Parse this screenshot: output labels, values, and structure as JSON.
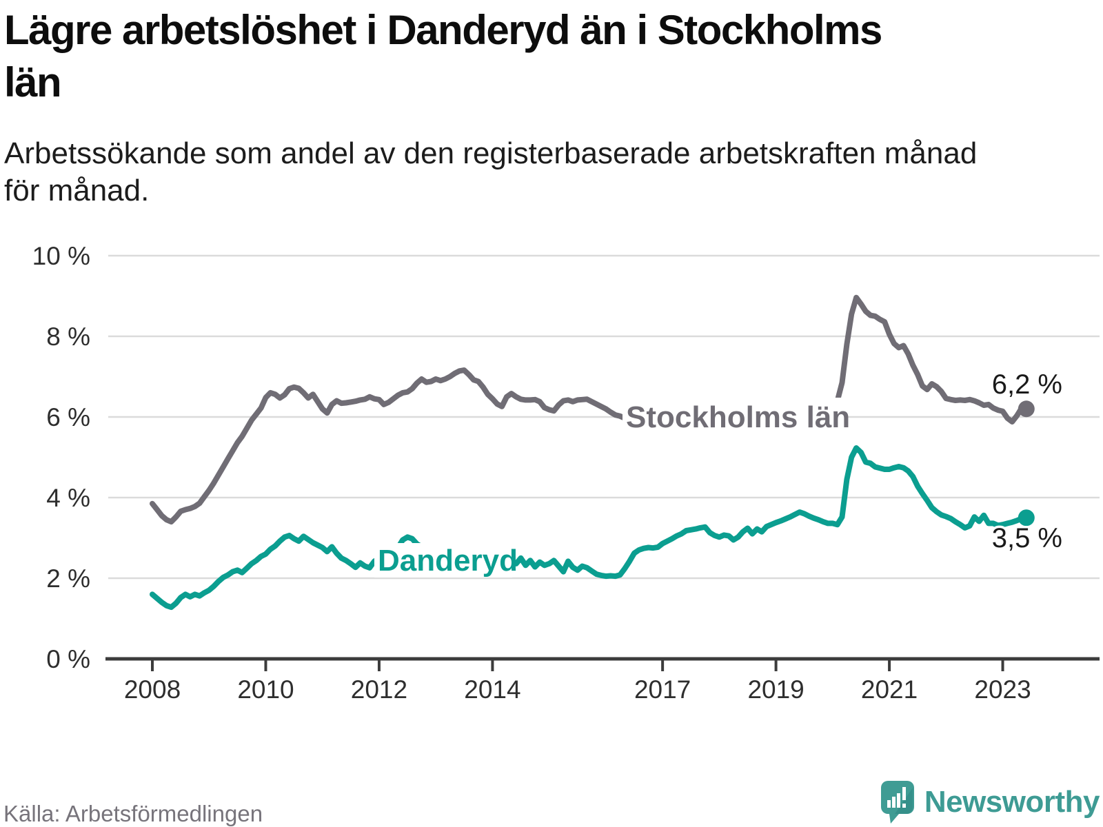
{
  "title": "Lägre arbetslöshet i Danderyd än i Stockholms län",
  "title_lines": [
    "Lägre arbetslöshet i Danderyd än i Stockholms",
    "län"
  ],
  "subtitle": "Arbetssökande som andel av den registerbaserade arbetskraften månad för månad.",
  "subtitle_lines": [
    "Arbetssökande som andel av den registerbaserade arbetskraften månad",
    "för månad."
  ],
  "source": "Källa: Arbetsförmedlingen",
  "brand": {
    "name": "Newsworthy",
    "color": "#3e9b94",
    "icon": "newsworthy-speech-bubble-chart-icon"
  },
  "colors": {
    "stockholm_line": "#706d75",
    "danderyd_line": "#0b9e90",
    "gridline": "#dbdbdb",
    "axis": "#3c3c3c",
    "tick_text": "#2e2e2e",
    "end_label_text": "#1a1a1a"
  },
  "chart_data": {
    "type": "line",
    "title": "Lägre arbetslöshet i Danderyd än i Stockholms län",
    "subtitle": "Arbetssökande som andel av den registerbaserade arbetskraften månad för månad.",
    "x_unit": "month",
    "x_start": "2008-01",
    "x_end": "2023-06",
    "ylim": [
      0,
      10
    ],
    "grid": "horizontal",
    "legend_position": "inline-labels",
    "y_ticks": [
      0,
      2,
      4,
      6,
      8,
      10
    ],
    "y_tick_labels": [
      "0 %",
      "2 %",
      "4 %",
      "6 %",
      "8 %",
      "10 %"
    ],
    "x_tick_years": [
      2008,
      2010,
      2012,
      2014,
      2017,
      2019,
      2021,
      2023
    ],
    "x_tick_labels": [
      "2008",
      "2010",
      "2012",
      "2014",
      "2017",
      "2019",
      "2021",
      "2023"
    ],
    "series": [
      {
        "name": "Stockholms län",
        "color": "#706d75",
        "end_value": 6.2,
        "end_label": "6,2 %",
        "values": [
          3.85,
          3.7,
          3.55,
          3.45,
          3.4,
          3.52,
          3.66,
          3.7,
          3.73,
          3.78,
          3.86,
          4.02,
          4.18,
          4.36,
          4.56,
          4.76,
          4.96,
          5.16,
          5.36,
          5.52,
          5.72,
          5.92,
          6.07,
          6.22,
          6.48,
          6.6,
          6.56,
          6.47,
          6.55,
          6.7,
          6.74,
          6.71,
          6.6,
          6.47,
          6.56,
          6.38,
          6.2,
          6.1,
          6.31,
          6.4,
          6.34,
          6.35,
          6.37,
          6.39,
          6.42,
          6.44,
          6.5,
          6.45,
          6.43,
          6.31,
          6.36,
          6.45,
          6.54,
          6.6,
          6.62,
          6.7,
          6.84,
          6.94,
          6.86,
          6.88,
          6.94,
          6.9,
          6.94,
          7.0,
          7.08,
          7.14,
          7.16,
          7.05,
          6.92,
          6.88,
          6.74,
          6.56,
          6.45,
          6.32,
          6.26,
          6.5,
          6.58,
          6.5,
          6.44,
          6.42,
          6.42,
          6.43,
          6.38,
          6.23,
          6.18,
          6.15,
          6.3,
          6.4,
          6.42,
          6.38,
          6.42,
          6.43,
          6.44,
          6.38,
          6.32,
          6.26,
          6.2,
          6.12,
          6.05,
          6.02,
          5.97,
          5.91,
          5.87,
          5.86,
          5.86,
          5.87,
          5.88,
          5.89,
          5.9,
          5.88,
          5.86,
          5.85,
          5.84,
          5.85,
          5.87,
          5.88,
          5.9,
          5.92,
          5.94,
          5.96,
          5.98,
          5.96,
          5.94,
          5.92,
          5.9,
          5.92,
          5.94,
          5.96,
          5.98,
          6.0,
          6.02,
          6.05,
          6.08,
          6.1,
          6.12,
          6.14,
          6.16,
          6.18,
          6.2,
          6.22,
          6.24,
          6.26,
          6.28,
          6.3,
          6.35,
          6.4,
          6.85,
          7.8,
          8.55,
          8.96,
          8.8,
          8.62,
          8.52,
          8.5,
          8.42,
          8.36,
          8.05,
          7.82,
          7.72,
          7.77,
          7.56,
          7.28,
          7.05,
          6.77,
          6.68,
          6.82,
          6.75,
          6.63,
          6.46,
          6.43,
          6.41,
          6.42,
          6.41,
          6.43,
          6.4,
          6.35,
          6.29,
          6.31,
          6.22,
          6.17,
          6.14,
          5.97,
          5.88,
          6.03,
          6.22,
          6.2
        ]
      },
      {
        "name": "Danderyd",
        "color": "#0b9e90",
        "end_value": 3.5,
        "end_label": "3,5 %",
        "values": [
          1.6,
          1.5,
          1.4,
          1.32,
          1.28,
          1.38,
          1.52,
          1.6,
          1.54,
          1.6,
          1.56,
          1.64,
          1.7,
          1.8,
          1.92,
          2.02,
          2.08,
          2.16,
          2.2,
          2.14,
          2.25,
          2.36,
          2.44,
          2.54,
          2.6,
          2.72,
          2.8,
          2.92,
          3.02,
          3.06,
          2.98,
          2.92,
          3.04,
          2.96,
          2.88,
          2.82,
          2.76,
          2.66,
          2.78,
          2.62,
          2.5,
          2.44,
          2.36,
          2.27,
          2.38,
          2.3,
          2.26,
          2.42,
          2.5,
          2.45,
          2.44,
          2.58,
          2.76,
          2.95,
          3.02,
          2.98,
          2.85,
          2.78,
          2.68,
          2.58,
          2.52,
          2.48,
          2.45,
          2.48,
          2.52,
          2.54,
          2.5,
          2.46,
          2.43,
          2.4,
          2.38,
          2.36,
          2.34,
          2.33,
          2.34,
          2.36,
          2.38,
          2.36,
          2.5,
          2.32,
          2.44,
          2.28,
          2.4,
          2.32,
          2.36,
          2.44,
          2.3,
          2.16,
          2.42,
          2.27,
          2.2,
          2.3,
          2.26,
          2.18,
          2.1,
          2.07,
          2.05,
          2.06,
          2.05,
          2.08,
          2.24,
          2.42,
          2.62,
          2.7,
          2.74,
          2.76,
          2.75,
          2.77,
          2.86,
          2.92,
          2.98,
          3.05,
          3.1,
          3.18,
          3.2,
          3.22,
          3.25,
          3.27,
          3.13,
          3.06,
          3.02,
          3.07,
          3.05,
          2.95,
          3.02,
          3.15,
          3.24,
          3.1,
          3.22,
          3.15,
          3.28,
          3.33,
          3.38,
          3.42,
          3.47,
          3.52,
          3.58,
          3.64,
          3.6,
          3.54,
          3.49,
          3.45,
          3.4,
          3.36,
          3.36,
          3.33,
          3.52,
          4.45,
          5.0,
          5.23,
          5.12,
          4.88,
          4.85,
          4.76,
          4.73,
          4.7,
          4.7,
          4.74,
          4.77,
          4.74,
          4.66,
          4.52,
          4.28,
          4.1,
          3.93,
          3.75,
          3.65,
          3.57,
          3.53,
          3.48,
          3.4,
          3.33,
          3.25,
          3.3,
          3.52,
          3.41,
          3.56,
          3.36,
          3.36,
          3.31,
          3.33,
          3.36,
          3.39,
          3.43,
          3.48,
          3.5
        ]
      }
    ]
  }
}
